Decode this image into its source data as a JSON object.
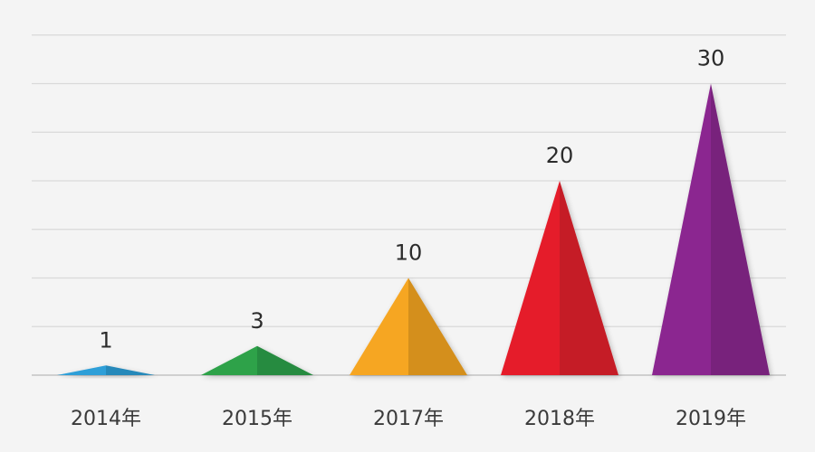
{
  "chart_data": {
    "type": "bar",
    "mark_shape": "triangle",
    "categories": [
      "2014年",
      "2015年",
      "2017年",
      "2018年",
      "2019年"
    ],
    "values": [
      1,
      3,
      10,
      20,
      30
    ],
    "colors": [
      "#2f9fd8",
      "#2ea24a",
      "#f6a623",
      "#e51f2b",
      "#8b2790"
    ],
    "ylim": [
      0,
      35
    ],
    "grid": true,
    "legend": "none",
    "title": "",
    "xlabel": "",
    "ylabel": ""
  }
}
